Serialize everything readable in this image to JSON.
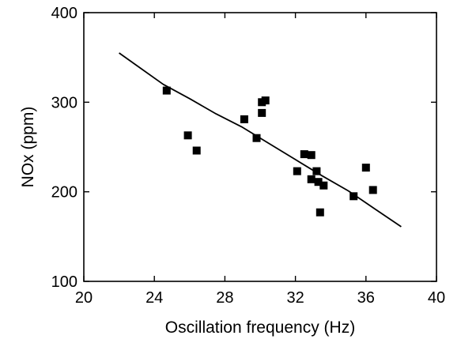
{
  "chart_data": {
    "type": "scatter",
    "title": "",
    "xlabel": "Oscillation frequency (Hz)",
    "ylabel": "NOx (ppm)",
    "xlim": [
      20,
      40
    ],
    "ylim": [
      100,
      400
    ],
    "xticks": [
      20,
      24,
      28,
      32,
      36,
      40
    ],
    "yticks": [
      100,
      200,
      300,
      400
    ],
    "x_tick_labels": [
      "20",
      "24",
      "28",
      "32",
      "36",
      "40"
    ],
    "y_tick_labels": [
      "100",
      "200",
      "300",
      "400"
    ],
    "grid": false,
    "legend": "none",
    "series": [
      {
        "type": "scatter",
        "marker": "square",
        "color": "#000000",
        "x": [
          24.7,
          25.9,
          26.4,
          29.1,
          29.8,
          30.1,
          30.1,
          30.3,
          32.1,
          32.5,
          32.9,
          32.9,
          33.2,
          33.3,
          33.4,
          33.6,
          35.3,
          36.0,
          36.4
        ],
        "y": [
          313,
          263,
          246,
          281,
          260,
          288,
          300,
          302,
          223,
          242,
          241,
          214,
          223,
          211,
          177,
          207,
          195,
          227,
          202
        ]
      },
      {
        "type": "line",
        "color": "#000000",
        "x": [
          22.0,
          23.0,
          24.5,
          26.0,
          27.5,
          29.0,
          30.5,
          32.0,
          33.5,
          35.0,
          36.5,
          38.0
        ],
        "y": [
          355,
          341,
          320,
          304,
          287,
          272,
          254,
          236,
          218,
          201,
          181,
          161
        ]
      }
    ]
  }
}
